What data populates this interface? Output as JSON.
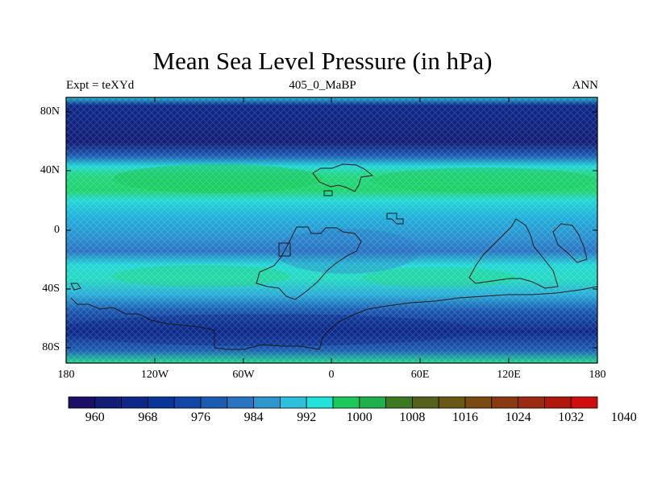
{
  "title": "Mean Sea Level Pressure (in hPa)",
  "left_label": "Expt = teXYd",
  "center_label": "405_0_MaBP",
  "right_label": "ANN",
  "y_ticks": [
    "80N",
    "40N",
    "0",
    "40S",
    "80S"
  ],
  "x_ticks": [
    "180",
    "120W",
    "60W",
    "0",
    "60E",
    "120E",
    "180"
  ],
  "colorbar": {
    "colors": [
      "#1a0f66",
      "#121d78",
      "#0d2889",
      "#0a3598",
      "#1246a6",
      "#1c5bb3",
      "#2a74c2",
      "#2e96cf",
      "#2dbfdc",
      "#22e3dc",
      "#19c95a",
      "#1fb04e",
      "#3c7a1f",
      "#56621b",
      "#6a5816",
      "#7a4a12",
      "#8a3a0f",
      "#9b2a0e",
      "#b0180c",
      "#d00d0d"
    ],
    "labels": [
      "960",
      "968",
      "976",
      "984",
      "992",
      "1000",
      "1008",
      "1016",
      "1024",
      "1032",
      "1040"
    ]
  }
}
